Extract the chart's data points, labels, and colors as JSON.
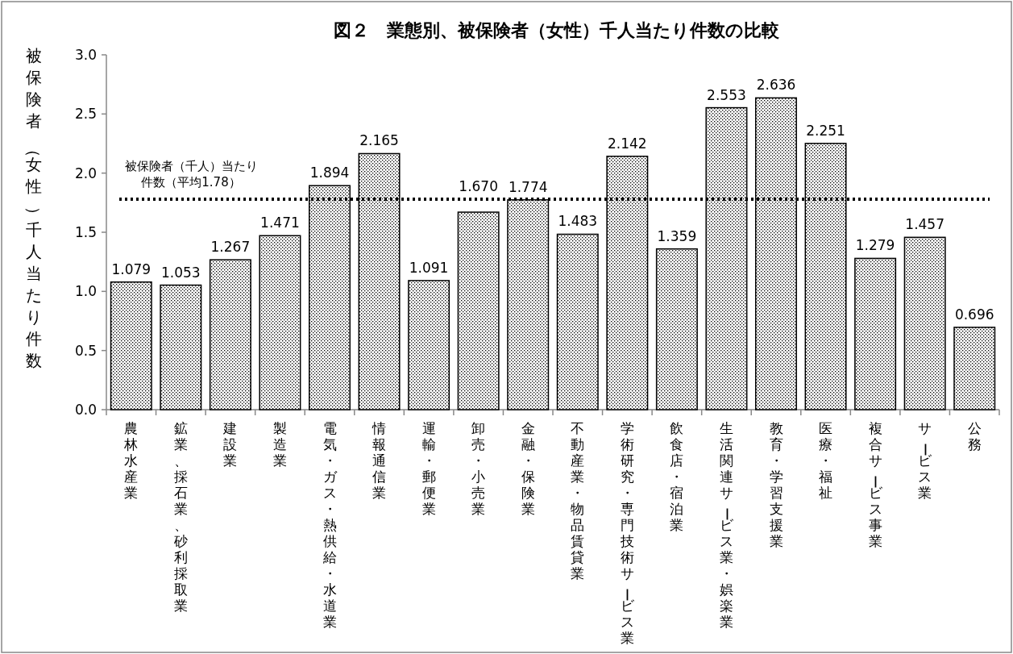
{
  "chart_data": {
    "type": "bar",
    "title": "図２　業態別、被保険者（女性）千人当たり件数の比較",
    "ylabel": "被保険者（女性）千人当たり件数",
    "categories": [
      "農林水産業",
      "鉱業、採石業、砂利採取業",
      "建設業",
      "製造業",
      "電気・ガス・熱供給・水道業",
      "情報通信業",
      "運輸・郵便業",
      "卸売・小売業",
      "金融・保険業",
      "不動産業・物品賃貸業",
      "学術研究・専門技術サービス業",
      "飲食店・宿泊業",
      "生活関連サービス業・娯楽業",
      "教育・学習支援業",
      "医療・福祉",
      "複合サービス事業",
      "サービス業",
      "公務"
    ],
    "values": [
      1.079,
      1.053,
      1.267,
      1.471,
      1.894,
      2.165,
      1.091,
      1.67,
      1.774,
      1.483,
      2.142,
      1.359,
      2.553,
      2.636,
      2.251,
      1.279,
      1.457,
      0.696
    ],
    "value_labels": [
      "1.079",
      "1.053",
      "1.267",
      "1.471",
      "1.894",
      "2.165",
      "1.091",
      "1.670",
      "1.774",
      "1.483",
      "2.142",
      "1.359",
      "2.553",
      "2.636",
      "2.251",
      "1.279",
      "1.457",
      "0.696"
    ],
    "color": "#000000",
    "ylim": [
      0,
      3
    ],
    "yticks": [
      {
        "value": 0,
        "label": "0.0"
      },
      {
        "value": 0.5,
        "label": "0.5"
      },
      {
        "value": 1,
        "label": "1.0"
      },
      {
        "value": 1.5,
        "label": "1.5"
      },
      {
        "value": 2,
        "label": "2.0"
      },
      {
        "value": 2.5,
        "label": "2.5"
      },
      {
        "value": 3,
        "label": "3.0"
      }
    ],
    "ref_lines": [
      {
        "axis": "y",
        "value": 1.78,
        "label": "被保険者（千人）当たり件数（平均1.78）",
        "color": "#000000",
        "line_style": "dotted"
      }
    ],
    "grid": false
  }
}
